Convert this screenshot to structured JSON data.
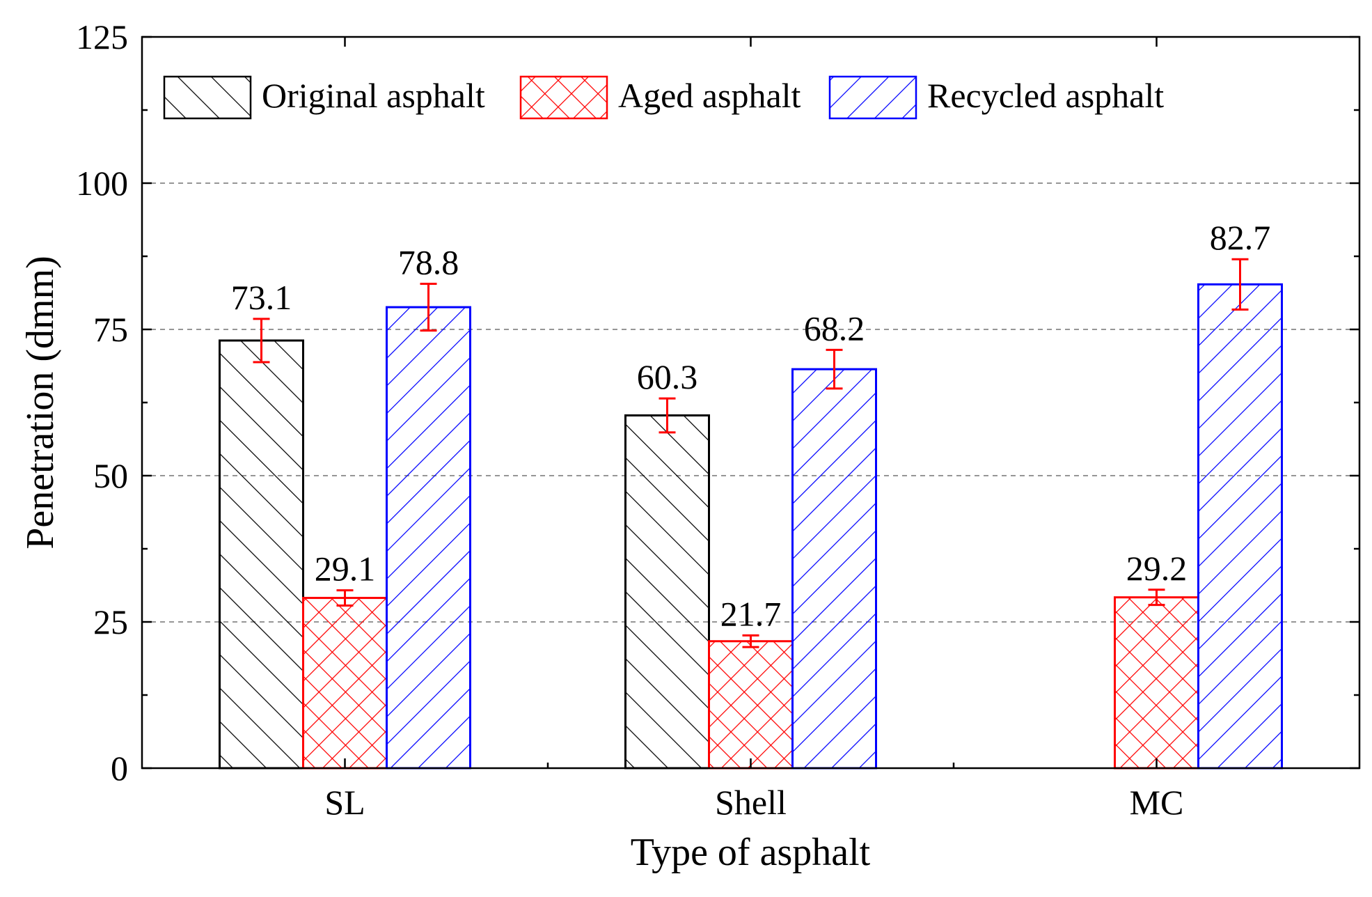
{
  "chart_data": {
    "type": "bar",
    "title": "",
    "xlabel": "Type of asphalt",
    "ylabel": "Penetration (dmm)",
    "ylim": [
      0,
      125
    ],
    "yticks": [
      "0",
      "25",
      "50",
      "75",
      "100",
      "125"
    ],
    "grid_values": [
      25,
      50,
      75,
      100
    ],
    "grid": true,
    "legend_position": "top",
    "categories": [
      "SL",
      "Shell",
      "MC"
    ],
    "series": [
      {
        "name": "Original asphalt",
        "color": "#000000",
        "hatch": "forward-diagonal",
        "values": [
          73.1,
          60.3,
          null
        ],
        "labels": [
          "73.1",
          "60.3",
          ""
        ],
        "errors": [
          3.7,
          2.9,
          null
        ]
      },
      {
        "name": "Aged asphalt",
        "color": "#ff0000",
        "hatch": "crosshatch",
        "values": [
          29.1,
          21.7,
          29.2
        ],
        "labels": [
          "29.1",
          "21.7",
          "29.2"
        ],
        "errors": [
          1.3,
          1.0,
          1.3
        ]
      },
      {
        "name": "Recycled asphalt",
        "color": "#0000ff",
        "hatch": "back-diagonal",
        "values": [
          78.8,
          68.2,
          82.7
        ],
        "labels": [
          "78.8",
          "68.2",
          "82.7"
        ],
        "errors": [
          4.0,
          3.3,
          4.3
        ]
      }
    ],
    "errorbar_color": "#ff0000"
  }
}
